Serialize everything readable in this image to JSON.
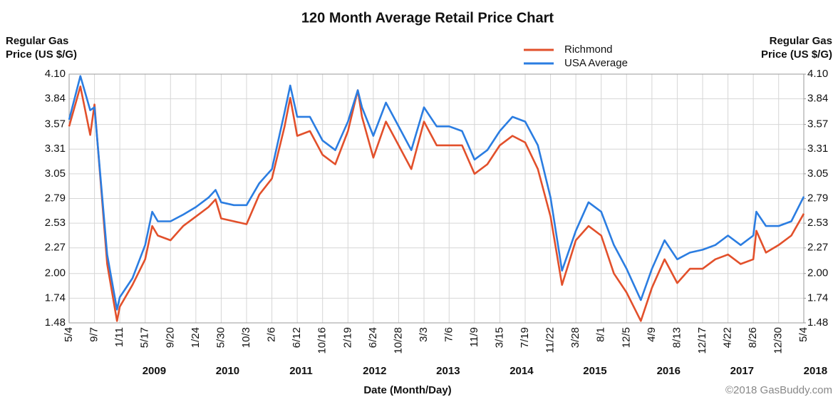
{
  "chart_data": {
    "type": "line",
    "title": "120 Month Average Retail Price Chart",
    "ylabel": [
      "Regular Gas",
      "Price (US $/G)"
    ],
    "y2label": [
      "Regular Gas",
      "Price (US $/G)"
    ],
    "xlabel": "Date (Month/Day)",
    "credit": "©2018 GasBuddy.com",
    "grid": true,
    "legend": "top",
    "ylim": [
      1.48,
      4.1
    ],
    "yticks": [
      1.48,
      1.74,
      {
        "value": 2,
        "label": "2.00"
      },
      2.27,
      2.53,
      2.79,
      3.05,
      3.31,
      3.57,
      3.84,
      {
        "value": 4.1,
        "label": "4.10"
      }
    ],
    "y2lim": [
      1.48,
      4.1
    ],
    "y2ticks": [
      1.48,
      1.74,
      {
        "value": 2,
        "label": "2.00"
      },
      2.27,
      2.53,
      2.79,
      3.05,
      3.31,
      3.57,
      3.84,
      {
        "value": 4.1,
        "label": "4.10"
      }
    ],
    "xlim": [
      "2008-05-04",
      "2018-05-04"
    ],
    "xticks": [
      {
        "value": "2008-05-04",
        "label": "5/4"
      },
      {
        "value": "2008-09-07",
        "label": "9/7"
      },
      {
        "value": "2009-01-11",
        "label": "1/11"
      },
      {
        "value": "2009-05-17",
        "label": "5/17"
      },
      {
        "value": "2009-09-20",
        "label": "9/20"
      },
      {
        "value": "2010-01-24",
        "label": "1/24"
      },
      {
        "value": "2010-05-30",
        "label": "5/30"
      },
      {
        "value": "2010-10-03",
        "label": "10/3"
      },
      {
        "value": "2011-02-06",
        "label": "2/6"
      },
      {
        "value": "2011-06-12",
        "label": "6/12"
      },
      {
        "value": "2011-10-16",
        "label": "10/16"
      },
      {
        "value": "2012-02-19",
        "label": "2/19"
      },
      {
        "value": "2012-06-24",
        "label": "6/24"
      },
      {
        "value": "2012-10-28",
        "label": "10/28"
      },
      {
        "value": "2013-03-03",
        "label": "3/3"
      },
      {
        "value": "2013-07-06",
        "label": "7/6"
      },
      {
        "value": "2013-11-09",
        "label": "11/9"
      },
      {
        "value": "2014-03-15",
        "label": "3/15"
      },
      {
        "value": "2014-07-19",
        "label": "7/19"
      },
      {
        "value": "2014-11-22",
        "label": "11/22"
      },
      {
        "value": "2015-03-28",
        "label": "3/28"
      },
      {
        "value": "2015-08-01",
        "label": "8/1"
      },
      {
        "value": "2015-12-05",
        "label": "12/5"
      },
      {
        "value": "2016-04-09",
        "label": "4/9"
      },
      {
        "value": "2016-08-13",
        "label": "8/13"
      },
      {
        "value": "2016-12-17",
        "label": "12/17"
      },
      {
        "value": "2017-04-22",
        "label": "4/22"
      },
      {
        "value": "2017-08-26",
        "label": "8/26"
      },
      {
        "value": "2017-12-30",
        "label": "12/30"
      },
      {
        "value": "2018-05-04",
        "label": "5/4"
      }
    ],
    "years": [
      "2009",
      "2010",
      "2011",
      "2012",
      "2013",
      "2014",
      "2015",
      "2016",
      "2017",
      "2018"
    ],
    "x": [
      "2008-05-04",
      "2008-06-29",
      "2008-08-17",
      "2008-09-07",
      "2008-11-09",
      "2008-12-28",
      "2009-01-11",
      "2009-03-15",
      "2009-05-17",
      "2009-06-21",
      "2009-07-19",
      "2009-09-20",
      "2009-11-22",
      "2010-01-24",
      "2010-03-28",
      "2010-05-02",
      "2010-05-30",
      "2010-08-01",
      "2010-10-03",
      "2010-12-05",
      "2011-02-06",
      "2011-04-10",
      "2011-05-08",
      "2011-06-12",
      "2011-08-14",
      "2011-10-16",
      "2011-12-18",
      "2012-02-19",
      "2012-04-08",
      "2012-04-29",
      "2012-06-24",
      "2012-08-26",
      "2012-10-28",
      "2012-12-30",
      "2013-03-03",
      "2013-05-05",
      "2013-07-06",
      "2013-09-08",
      "2013-11-09",
      "2014-01-12",
      "2014-03-15",
      "2014-05-17",
      "2014-07-19",
      "2014-09-20",
      "2014-11-22",
      "2015-01-18",
      "2015-03-28",
      "2015-05-30",
      "2015-08-01",
      "2015-10-03",
      "2015-12-05",
      "2016-02-14",
      "2016-04-09",
      "2016-06-11",
      "2016-08-13",
      "2016-10-15",
      "2016-12-17",
      "2017-02-18",
      "2017-04-22",
      "2017-06-24",
      "2017-08-26",
      "2017-09-10",
      "2017-10-28",
      "2017-12-30",
      "2018-03-03",
      "2018-05-04"
    ],
    "series": [
      {
        "name": "Richmond",
        "color": "#e2502b",
        "values": [
          3.55,
          3.97,
          3.46,
          3.78,
          2.1,
          1.5,
          1.65,
          1.88,
          2.15,
          2.5,
          2.4,
          2.35,
          2.5,
          2.6,
          2.7,
          2.78,
          2.58,
          2.55,
          2.52,
          2.83,
          3.0,
          3.55,
          3.85,
          3.45,
          3.5,
          3.25,
          3.15,
          3.5,
          3.93,
          3.65,
          3.22,
          3.6,
          3.35,
          3.1,
          3.6,
          3.35,
          3.35,
          3.35,
          3.05,
          3.15,
          3.35,
          3.45,
          3.38,
          3.1,
          2.6,
          1.88,
          2.35,
          2.5,
          2.4,
          2.0,
          1.8,
          1.5,
          1.85,
          2.15,
          1.9,
          2.05,
          2.05,
          2.15,
          2.2,
          2.1,
          2.15,
          2.45,
          2.22,
          2.3,
          2.4,
          2.63
        ]
      },
      {
        "name": "USA Average",
        "color": "#2b7de1",
        "values": [
          3.62,
          4.08,
          3.72,
          3.75,
          2.2,
          1.62,
          1.75,
          1.95,
          2.3,
          2.65,
          2.55,
          2.55,
          2.62,
          2.7,
          2.8,
          2.88,
          2.75,
          2.72,
          2.72,
          2.95,
          3.1,
          3.7,
          3.98,
          3.65,
          3.65,
          3.4,
          3.3,
          3.6,
          3.93,
          3.75,
          3.45,
          3.8,
          3.55,
          3.3,
          3.75,
          3.55,
          3.55,
          3.5,
          3.2,
          3.3,
          3.5,
          3.65,
          3.6,
          3.35,
          2.8,
          2.03,
          2.45,
          2.75,
          2.65,
          2.3,
          2.05,
          1.72,
          2.05,
          2.35,
          2.15,
          2.22,
          2.25,
          2.3,
          2.4,
          2.3,
          2.4,
          2.65,
          2.5,
          2.5,
          2.55,
          2.81
        ]
      }
    ]
  }
}
